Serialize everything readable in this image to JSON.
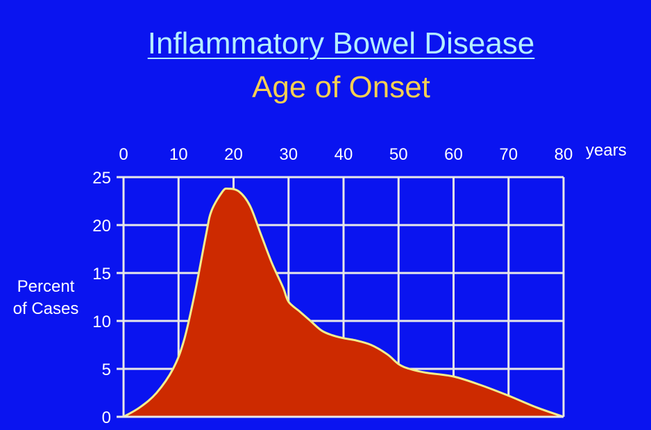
{
  "title": "Inflammatory Bowel Disease",
  "subtitle": "Age of Onset",
  "chart_data": {
    "type": "area",
    "title": "Inflammatory Bowel Disease",
    "subtitle": "Age of Onset",
    "xlabel": "years",
    "ylabel": [
      "Percent",
      "of Cases"
    ],
    "xlim": [
      0,
      80
    ],
    "ylim": [
      0,
      25
    ],
    "x_ticks": [
      0,
      10,
      20,
      30,
      40,
      50,
      60,
      70,
      80
    ],
    "y_ticks": [
      0,
      5,
      10,
      15,
      20,
      25
    ],
    "x_axis_position": "top",
    "grid": true,
    "series": [
      {
        "x": [
          0,
          3,
          6,
          9,
          11,
          13,
          15,
          16,
          18,
          19,
          21,
          23,
          25,
          27,
          29,
          30,
          32,
          34,
          36,
          38,
          40,
          42,
          45,
          48,
          50,
          52,
          55,
          60,
          65,
          70,
          75,
          80
        ],
        "y": [
          0,
          1,
          2.5,
          5,
          8,
          13,
          19,
          21.5,
          23.5,
          23.8,
          23.5,
          22,
          19,
          16,
          13.5,
          12,
          11,
          10,
          9,
          8.5,
          8.2,
          8,
          7.5,
          6.5,
          5.5,
          5,
          4.6,
          4.2,
          3.3,
          2.2,
          1,
          0
        ]
      }
    ],
    "colors": {
      "fill": "#cd2a00",
      "line": "#f3ee8c",
      "grid": "#e8e8e8",
      "background": "#0a14f0"
    }
  }
}
